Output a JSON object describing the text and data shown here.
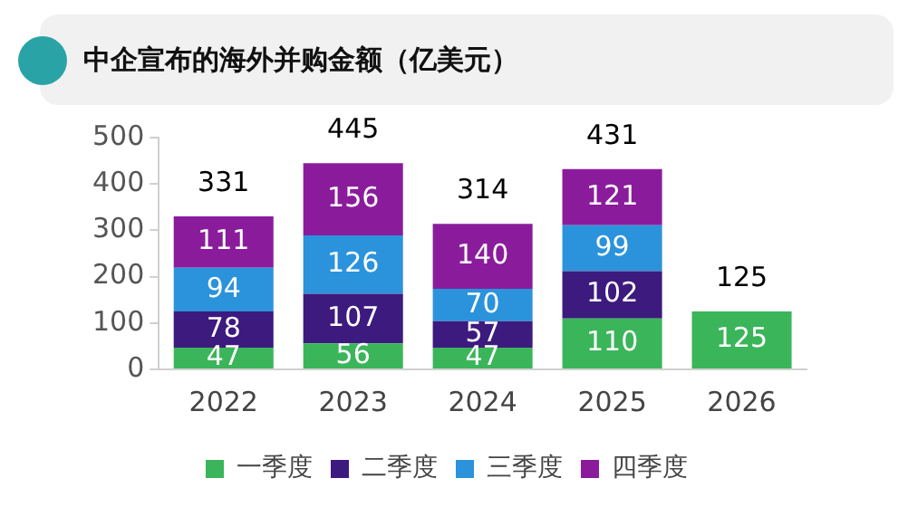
{
  "chart_data": {
    "type": "bar",
    "title": "中企宣布的海外并购金额（亿美元）",
    "categories": [
      "2022",
      "2023",
      "2024",
      "2025",
      "2026"
    ],
    "series": [
      {
        "name": "一季度",
        "color": "#3bb55a",
        "values": [
          47,
          56,
          47,
          110,
          125
        ]
      },
      {
        "name": "二季度",
        "color": "#3c1a7e",
        "values": [
          78,
          107,
          57,
          102,
          null
        ]
      },
      {
        "name": "三季度",
        "color": "#2b93dc",
        "values": [
          94,
          126,
          70,
          99,
          null
        ]
      },
      {
        "name": "四季度",
        "color": "#8a1c9c",
        "values": [
          111,
          156,
          140,
          121,
          null
        ]
      }
    ],
    "stacked": true,
    "totals": [
      "331",
      "445",
      "314",
      "431",
      "125"
    ],
    "data_labels": true,
    "ylim": [
      0,
      500
    ],
    "yticks": [
      0,
      100,
      200,
      300,
      400,
      500
    ],
    "grid": false,
    "legend": "bottom"
  }
}
